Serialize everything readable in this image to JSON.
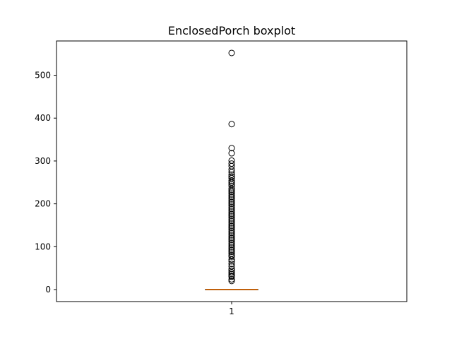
{
  "chart_data": {
    "type": "boxplot",
    "title": "EnclosedPorch boxplot",
    "xlabel": "",
    "ylabel": "",
    "categories": [
      "1"
    ],
    "ylim": [
      -28,
      580
    ],
    "yticks": [
      0,
      100,
      200,
      300,
      400,
      500
    ],
    "ytick_labels": [
      "0",
      "100",
      "200",
      "300",
      "400",
      "500"
    ],
    "grid": false,
    "box": {
      "min": 0,
      "q1": 0,
      "median": 0,
      "q3": 0,
      "max": 0
    },
    "outliers": [
      552,
      386,
      330,
      318,
      301,
      294,
      288,
      280,
      274,
      268,
      264,
      260,
      254,
      250,
      246,
      242,
      236,
      232,
      228,
      224,
      220,
      216,
      212,
      208,
      204,
      200,
      196,
      192,
      188,
      184,
      180,
      176,
      172,
      168,
      164,
      160,
      156,
      152,
      148,
      144,
      140,
      136,
      132,
      128,
      124,
      120,
      116,
      112,
      108,
      104,
      100,
      96,
      92,
      88,
      84,
      80,
      77,
      70,
      66,
      60,
      54,
      48,
      44,
      40,
      36,
      32,
      30,
      24,
      20
    ],
    "colors": {
      "box": "#000000",
      "median": "#ff7f0e",
      "outlier_edge": "#000000"
    }
  }
}
